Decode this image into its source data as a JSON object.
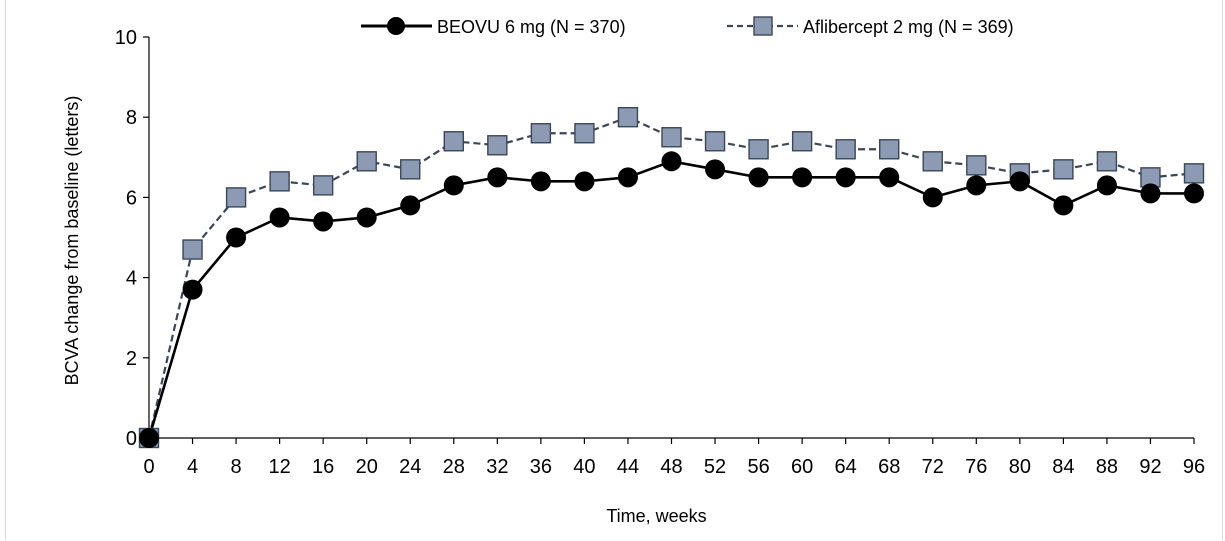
{
  "chart_data": {
    "type": "line",
    "xlabel": "Time, weeks",
    "ylabel": "BCVA change from baseline (letters)",
    "ylim": [
      0,
      10
    ],
    "yticks": [
      0,
      2,
      4,
      6,
      8,
      10
    ],
    "x": [
      0,
      4,
      8,
      12,
      16,
      20,
      24,
      28,
      32,
      36,
      40,
      44,
      48,
      52,
      56,
      60,
      64,
      68,
      72,
      76,
      80,
      84,
      88,
      92,
      96
    ],
    "xlim": [
      0,
      96
    ],
    "grid": false,
    "legend_position": "top",
    "series": [
      {
        "name": "BEOVU 6 mg (N = 370)",
        "marker": "circle",
        "line_style": "solid",
        "color": "#000000",
        "values": [
          0,
          3.7,
          5.0,
          5.5,
          5.4,
          5.5,
          5.8,
          6.3,
          6.5,
          6.4,
          6.4,
          6.5,
          6.9,
          6.7,
          6.5,
          6.5,
          6.5,
          6.5,
          6.0,
          6.3,
          6.4,
          5.8,
          6.3,
          6.1,
          6.1
        ]
      },
      {
        "name": "Aflibercept 2 mg (N = 369)",
        "marker": "square",
        "line_style": "dashed",
        "color": "#3b4658",
        "fill": "#8c9bb3",
        "values": [
          0,
          4.7,
          6.0,
          6.4,
          6.3,
          6.9,
          6.7,
          7.4,
          7.3,
          7.6,
          7.6,
          8.0,
          7.5,
          7.4,
          7.2,
          7.4,
          7.2,
          7.2,
          6.9,
          6.8,
          6.6,
          6.7,
          6.9,
          6.5,
          6.6
        ]
      }
    ]
  }
}
